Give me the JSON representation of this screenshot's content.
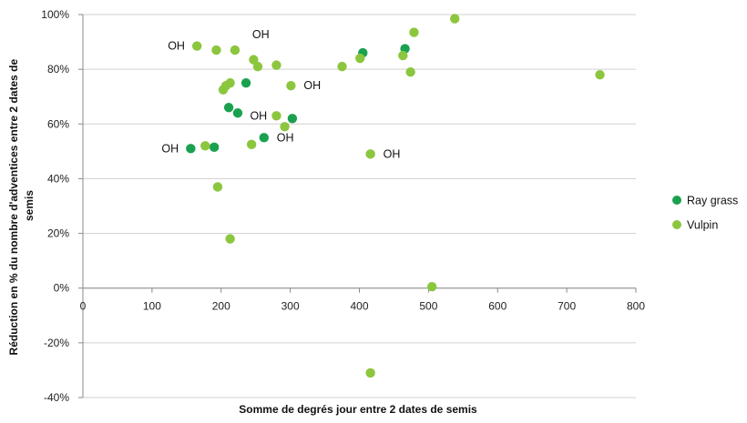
{
  "chart_data": {
    "type": "scatter",
    "title": "",
    "xlabel": "Somme de degrés jour entre 2 dates de semis",
    "ylabel_lines": [
      "Réduction en % du nombre d'adventices entre 2 dates de",
      "semis"
    ],
    "xlim": [
      0,
      800
    ],
    "ylim": [
      -40,
      100
    ],
    "x_ticks": [
      0,
      100,
      200,
      300,
      400,
      500,
      600,
      700,
      800
    ],
    "x_tick_labels": [
      "0",
      "100",
      "200",
      "300",
      "400",
      "500",
      "600",
      "700",
      "800"
    ],
    "y_ticks": [
      -40,
      -20,
      0,
      20,
      40,
      60,
      80,
      100
    ],
    "y_tick_labels": [
      "-40%",
      "-20%",
      "0%",
      "20%",
      "40%",
      "60%",
      "80%",
      "100%"
    ],
    "grid": "horizontal",
    "legend_position": "right",
    "series": [
      {
        "name": "Ray grass",
        "color": "#1aa150",
        "points": [
          [
            156,
            51
          ],
          [
            190,
            51.5
          ],
          [
            211,
            66
          ],
          [
            224,
            64
          ],
          [
            236,
            75
          ],
          [
            262,
            55
          ],
          [
            303,
            62
          ],
          [
            405,
            86
          ],
          [
            466,
            87.5
          ]
        ]
      },
      {
        "name": "Vulpin",
        "color": "#8cc63f",
        "points": [
          [
            165,
            88.5
          ],
          [
            193,
            87
          ],
          [
            220,
            87
          ],
          [
            247,
            83.5
          ],
          [
            253,
            81
          ],
          [
            280,
            81.5
          ],
          [
            203,
            72.5
          ],
          [
            207,
            74
          ],
          [
            213,
            75
          ],
          [
            177,
            52
          ],
          [
            195,
            37
          ],
          [
            213,
            18
          ],
          [
            244,
            52.5
          ],
          [
            280,
            63
          ],
          [
            292,
            59
          ],
          [
            301,
            74
          ],
          [
            375,
            81
          ],
          [
            401,
            84
          ],
          [
            416,
            49
          ],
          [
            463,
            85
          ],
          [
            474,
            79
          ],
          [
            479,
            93.5
          ],
          [
            538,
            98.5
          ],
          [
            748,
            78
          ],
          [
            505,
            0.5
          ],
          [
            416,
            -31
          ]
        ]
      }
    ],
    "annotations": [
      {
        "text": "OH",
        "x": 165,
        "y": 88.5
      },
      {
        "text": "OH",
        "x": 220,
        "y": 87
      },
      {
        "text": "OH",
        "x": 301,
        "y": 74
      },
      {
        "text": "OH",
        "x": 280,
        "y": 63
      },
      {
        "text": "OH",
        "x": 262,
        "y": 55
      },
      {
        "text": "OH",
        "x": 156,
        "y": 51
      },
      {
        "text": "OH",
        "x": 416,
        "y": 49
      }
    ]
  }
}
